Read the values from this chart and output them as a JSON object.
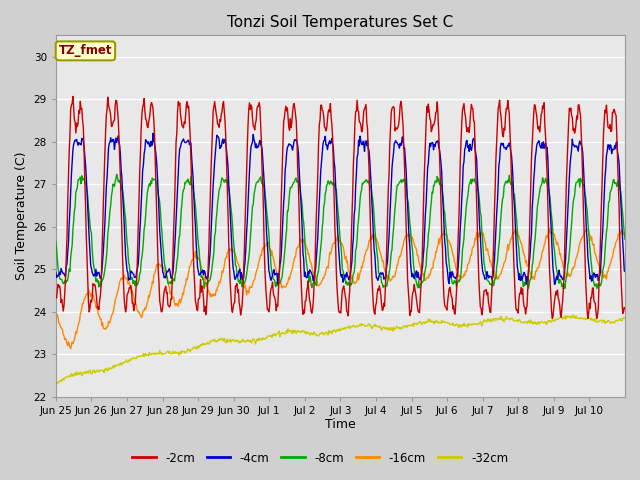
{
  "title": "Tonzi Soil Temperatures Set C",
  "ylabel": "Soil Temperature (C)",
  "xlabel": "Time",
  "annotation": "TZ_fmet",
  "ylim": [
    22.0,
    30.5
  ],
  "yticks": [
    22.0,
    23.0,
    24.0,
    25.0,
    26.0,
    27.0,
    28.0,
    29.0,
    30.0
  ],
  "fig_bg": "#d0d0d0",
  "plot_bg": "#e8e8e8",
  "series": {
    "-2cm": {
      "color": "#cc0000",
      "lw": 1.0
    },
    "-4cm": {
      "color": "#0000cc",
      "lw": 1.0
    },
    "-8cm": {
      "color": "#00aa00",
      "lw": 1.0
    },
    "-16cm": {
      "color": "#ff8800",
      "lw": 1.0
    },
    "-32cm": {
      "color": "#cccc00",
      "lw": 1.0
    }
  },
  "x_tick_labels": [
    "Jun 25",
    "Jun 26",
    "Jun 27",
    "Jun 28",
    "Jun 29",
    "Jun 30",
    "Jul 1",
    "Jul 2",
    "Jul 3",
    "Jul 4",
    "Jul 5",
    "Jul 6",
    "Jul 7",
    "Jul 8",
    "Jul 9",
    "Jul 10"
  ],
  "n_days": 16,
  "samples_per_day": 48,
  "annotation_color": "#880000",
  "annotation_bg": "#ffffcc",
  "annotation_edge": "#999900"
}
